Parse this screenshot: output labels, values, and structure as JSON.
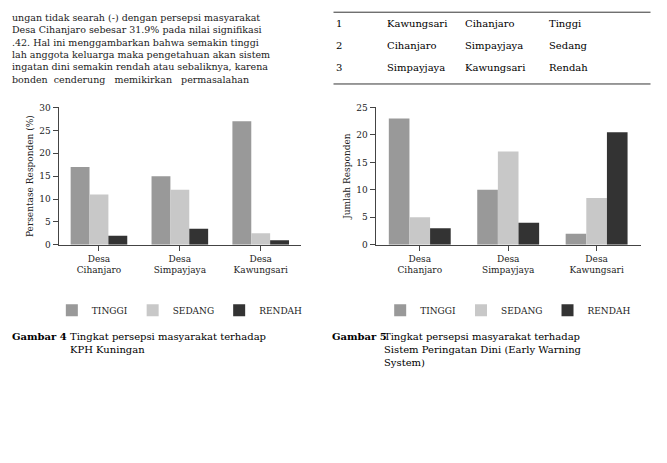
{
  "chart_data": [
    {
      "type": "bar",
      "categories": [
        "Desa\nCihanjaro",
        "Desa\nSimpayjaya",
        "Desa\nKawungsari"
      ],
      "series": [
        {
          "name": "TINGGI",
          "color": "#999999",
          "values": [
            17,
            15,
            27
          ]
        },
        {
          "name": "SEDANG",
          "color": "#C8C8C8",
          "values": [
            11,
            12,
            2.5
          ]
        },
        {
          "name": "RENDAH",
          "color": "#333333",
          "values": [
            2,
            3.5,
            1
          ]
        }
      ],
      "y_label": "Persentase Responden (%)",
      "ylim": [
        0,
        30
      ],
      "yticks": [
        0,
        5,
        10,
        15,
        20,
        25,
        30
      ],
      "grid": false,
      "legend": "bottom",
      "annotations": [
        "Gambar 4",
        "Tingkat persepsi masyarakat terhadap",
        "KPH Kuningan"
      ]
    },
    {
      "type": "bar",
      "categories": [
        "Desa\nCihanjaro",
        "Desa\nSimpayjaya",
        "Desa\nKawungsari"
      ],
      "series": [
        {
          "name": "TINGGI",
          "color": "#999999",
          "values": [
            23,
            10,
            2
          ]
        },
        {
          "name": "SEDANG",
          "color": "#C8C8C8",
          "values": [
            5,
            17,
            8.5
          ]
        },
        {
          "name": "RENDAH",
          "color": "#333333",
          "values": [
            3,
            4,
            20.5
          ]
        }
      ],
      "y_label": "Jumlah Responden",
      "ylim": [
        0,
        25
      ],
      "yticks": [
        0,
        5,
        10,
        15,
        20,
        25
      ],
      "grid": false,
      "legend": "bottom",
      "annotations": [
        "Gambar 5",
        "Tingkat persepsi masyarakat terhadap",
        "Sistem Peringatan Dini (Early Warning",
        "System)"
      ]
    }
  ],
  "annotations": [
    "ungan tidak searah (-) dengan persepsi masyarakat",
    "Desa Cihanjaro sebesar 31.9% pada nilai signifikasi",
    ".42. Hal ini menggambarkan bahwa semakin tinggi",
    "lah anggota keluarga maka pengetahuan akan sistem",
    "ingatan dini semakin rendah atau sebaliknya, karena",
    "bonden  cenderung   memikirkan   permasalahan"
  ],
  "table": [
    [
      "1",
      "Kawungsari",
      "Cihanjaro",
      "Tinggi"
    ],
    [
      "2",
      "Cihanjaro",
      "Simpayjaya",
      "Sedang"
    ],
    [
      "3",
      "Simpayjaya",
      "Kawungsari",
      "Rendah"
    ]
  ]
}
